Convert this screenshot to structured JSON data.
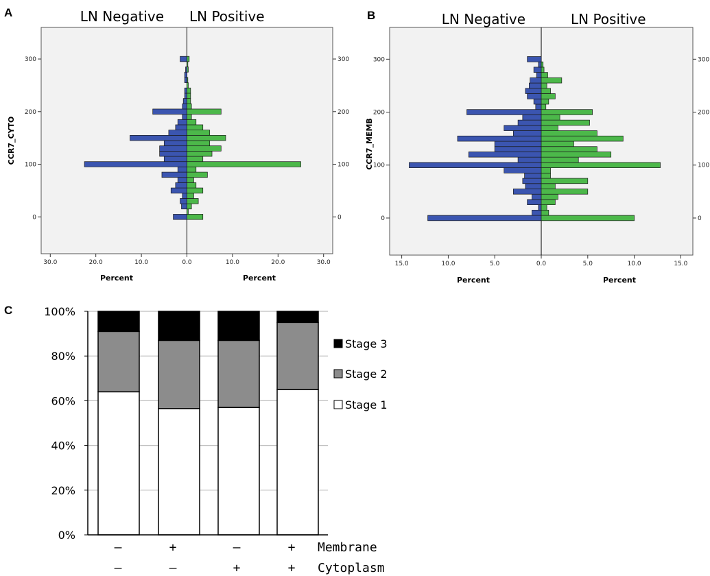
{
  "chart_data": [
    {
      "panel": "A",
      "type": "bar",
      "orientation": "horizontal-pyramid",
      "headers": [
        "LN Negative",
        "LN Positive"
      ],
      "ylabel": "CCR7_CYTO",
      "xlabel_left": "Percent",
      "xlabel_right": "Percent",
      "y_ticks": [
        0,
        100,
        200,
        300
      ],
      "x_ticks_left": [
        "30.0",
        "20.0",
        "10.0",
        "0.0"
      ],
      "x_ticks_right": [
        "0.0",
        "10.0",
        "20.0",
        "30.0"
      ],
      "ylim": [
        -70,
        360
      ],
      "xlim": [
        -32,
        32
      ],
      "bin_width": 10,
      "colors": {
        "negative": "#3b55b0",
        "positive": "#4cb84a",
        "background": "#f2f2f2"
      },
      "bins": [
        0,
        10,
        20,
        30,
        40,
        50,
        60,
        70,
        80,
        90,
        100,
        110,
        120,
        130,
        140,
        150,
        160,
        170,
        180,
        190,
        200,
        210,
        220,
        230,
        240,
        250,
        260,
        270,
        280,
        290,
        300
      ],
      "series": [
        {
          "name": "LN Negative",
          "values": [
            3.0,
            0,
            1.2,
            1.5,
            1.0,
            3.5,
            2.5,
            2.0,
            5.5,
            2.0,
            22.5,
            5.0,
            6.0,
            6.0,
            5.0,
            12.5,
            4.0,
            2.5,
            2.0,
            1.0,
            7.5,
            1.0,
            0.8,
            0.5,
            0.5,
            0,
            0.5,
            0.5,
            0.3,
            0,
            1.5
          ]
        },
        {
          "name": "LN Positive",
          "values": [
            3.5,
            0.3,
            1.0,
            2.5,
            1.5,
            3.5,
            2.0,
            1.5,
            4.5,
            2.0,
            25.0,
            3.5,
            5.5,
            7.5,
            5.0,
            8.5,
            5.0,
            3.5,
            2.0,
            1.0,
            7.5,
            1.0,
            0.8,
            0.8,
            0.8,
            0.3,
            0.2,
            0,
            0.3,
            0.2,
            0.5
          ]
        }
      ]
    },
    {
      "panel": "B",
      "type": "bar",
      "orientation": "horizontal-pyramid",
      "headers": [
        "LN Negative",
        "LN Positive"
      ],
      "ylabel": "CCR7_MEMB",
      "xlabel_left": "Percent",
      "xlabel_right": "Percent",
      "y_ticks": [
        0,
        100,
        200,
        300
      ],
      "x_ticks_left": [
        "15.0",
        "10.0",
        "5.0",
        "0.0"
      ],
      "x_ticks_right": [
        "0.0",
        "5.0",
        "10.0",
        "15.0"
      ],
      "ylim": [
        -70,
        360
      ],
      "xlim": [
        -16.3,
        16.3
      ],
      "bin_width": 10,
      "colors": {
        "negative": "#3b55b0",
        "positive": "#4cb84a",
        "background": "#f2f2f2"
      },
      "bins": [
        0,
        10,
        20,
        30,
        40,
        50,
        60,
        70,
        80,
        90,
        100,
        110,
        120,
        130,
        140,
        150,
        160,
        170,
        180,
        190,
        200,
        210,
        220,
        230,
        240,
        250,
        260,
        270,
        280,
        290,
        300
      ],
      "series": [
        {
          "name": "LN Negative",
          "values": [
            12.2,
            1.0,
            0.3,
            1.5,
            1.0,
            3.0,
            1.7,
            2.0,
            1.8,
            4.0,
            14.2,
            2.5,
            7.8,
            5.0,
            5.0,
            9.0,
            3.0,
            4.0,
            2.5,
            2.0,
            8.0,
            0.6,
            0.8,
            1.5,
            1.7,
            1.3,
            1.2,
            0.5,
            0.8,
            0.3,
            1.5
          ]
        },
        {
          "name": "LN Positive",
          "values": [
            10.0,
            0.8,
            0.6,
            1.5,
            1.8,
            5.0,
            1.5,
            5.0,
            1.0,
            1.0,
            12.8,
            4.0,
            7.5,
            6.0,
            3.5,
            8.8,
            6.0,
            1.8,
            5.2,
            2.0,
            5.5,
            0.5,
            0.8,
            1.5,
            1.0,
            0.6,
            2.2,
            0.7,
            0.3,
            0.2,
            0
          ]
        }
      ]
    },
    {
      "panel": "C",
      "type": "bar",
      "stacked": true,
      "ylim": [
        0,
        100
      ],
      "y_ticks": [
        "0%",
        "20%",
        "40%",
        "60%",
        "80%",
        "100%"
      ],
      "row_labels": [
        "Membrane",
        "Cytoplasm"
      ],
      "groups": [
        {
          "membrane": "–",
          "cytoplasm": "–"
        },
        {
          "membrane": "+",
          "cytoplasm": "–"
        },
        {
          "membrane": "–",
          "cytoplasm": "+"
        },
        {
          "membrane": "+",
          "cytoplasm": "+"
        }
      ],
      "legend_position": "right",
      "series": [
        {
          "name": "Stage 1",
          "color": "#ffffff",
          "values": [
            64,
            56.5,
            57,
            65
          ]
        },
        {
          "name": "Stage 2",
          "color": "#8c8c8c",
          "values": [
            27,
            30.5,
            30,
            30
          ]
        },
        {
          "name": "Stage 3",
          "color": "#000000",
          "values": [
            9,
            13,
            13,
            5
          ]
        }
      ],
      "legend": [
        "Stage 3",
        "Stage 2",
        "Stage 1"
      ]
    }
  ]
}
